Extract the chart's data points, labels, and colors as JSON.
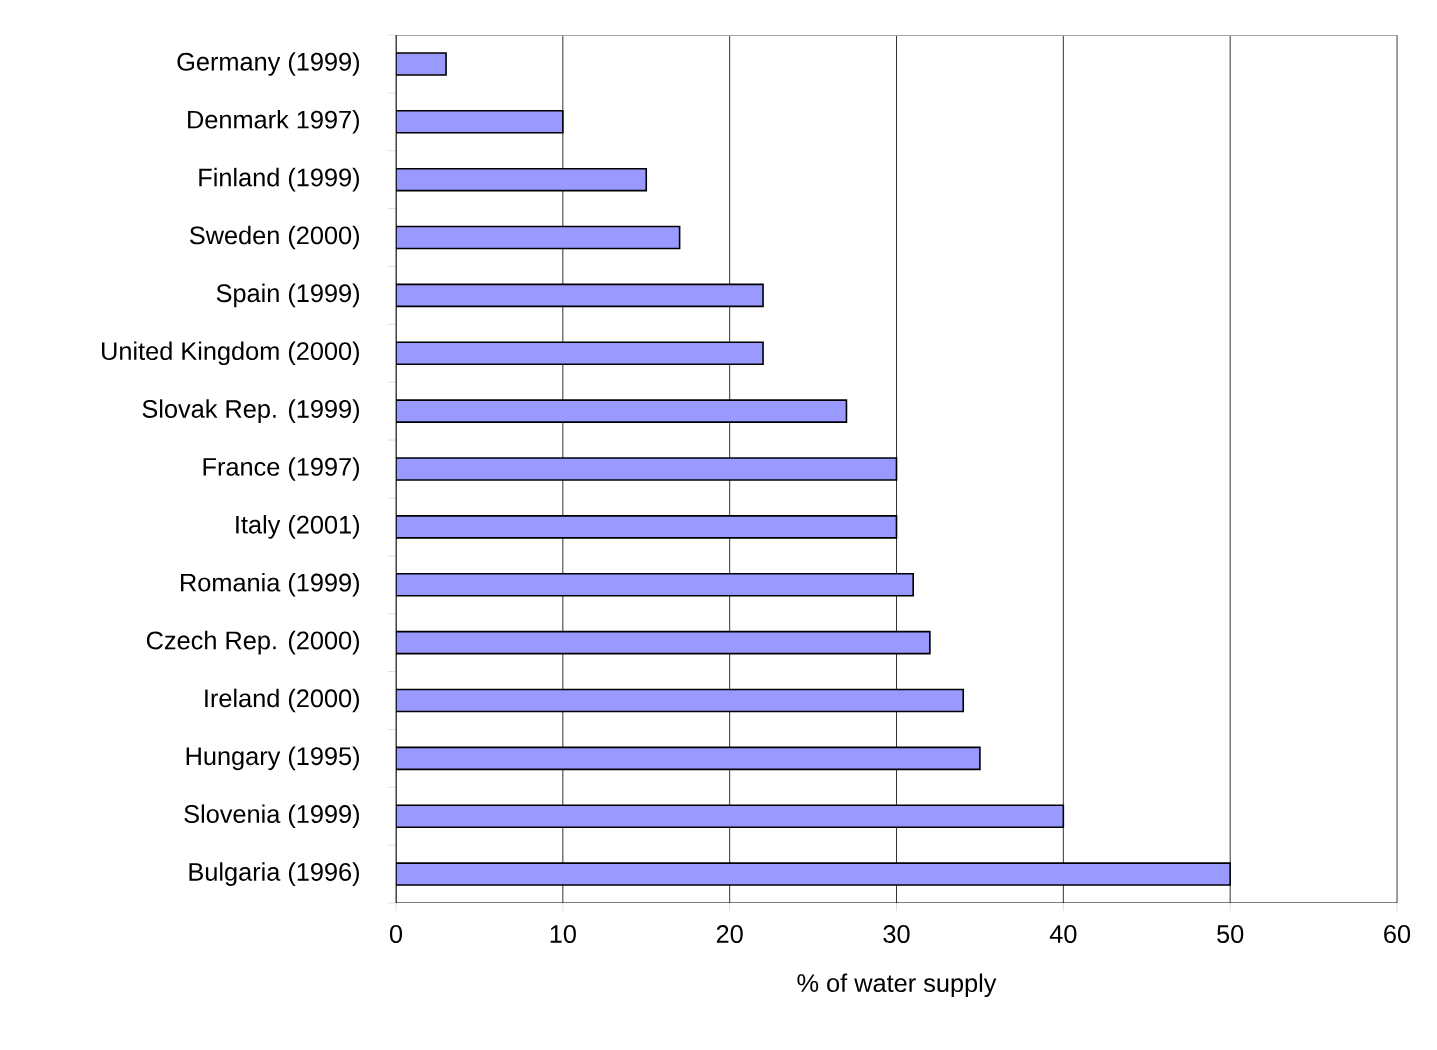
{
  "chart_data": {
    "type": "bar",
    "orientation": "horizontal",
    "categories": [
      "Germany (1999)",
      "Denmark 1997)",
      "Finland (1999)",
      "Sweden (2000)",
      "Spain (1999)",
      "United Kingdom (2000)",
      "Slovak Rep. (1999)",
      "France (1997)",
      "Italy (2001)",
      "Romania (1999)",
      "Czech Rep. (2000)",
      "Ireland (2000)",
      "Hungary (1995)",
      "Slovenia (1999)",
      "Bulgaria (1996)"
    ],
    "values": [
      3,
      10,
      15,
      17,
      22,
      22,
      27,
      30,
      30,
      31,
      32,
      34,
      35,
      40,
      50
    ],
    "color": "#9999ff",
    "xlabel": "% of water supply",
    "xlim": [
      0,
      60
    ],
    "xticks": [
      0,
      10,
      20,
      30,
      40,
      50,
      60
    ],
    "grid": "x"
  }
}
